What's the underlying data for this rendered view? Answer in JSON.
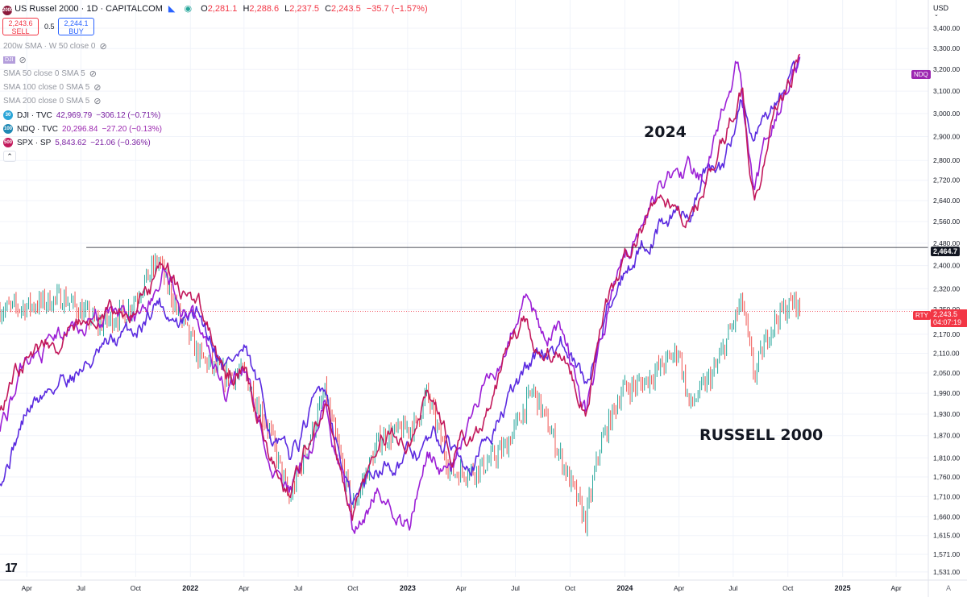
{
  "header": {
    "symbol_title": "US Russel 2000 · 1D · CAPITALCOM",
    "ohlc": {
      "o_label": "O",
      "o": "2,281.1",
      "h_label": "H",
      "h": "2,288.6",
      "l_label": "L",
      "l": "2,237.5",
      "c_label": "C",
      "c": "2,243.5",
      "change": "−35.7 (−1.57%)"
    },
    "sell_price": "2,243.6",
    "sell_label": "SELL",
    "spread": "0.5",
    "buy_price": "2,244.1",
    "buy_label": "BUY",
    "currency": "USD"
  },
  "indicators": [
    {
      "label": "200w SMA · W 50 close 0"
    },
    {
      "label": "SMA 50 close 0 SMA 5"
    },
    {
      "label": "SMA 100 close 0 SMA 5"
    },
    {
      "label": "SMA 200 close 0 SMA 5"
    }
  ],
  "stacked_badge_text": "DJI",
  "compare_symbols": [
    {
      "badge": "30",
      "name": "DJI · TVC",
      "value": "42,969.79",
      "change": "−306.12 (−0.71%)",
      "color": "#7b1fa2",
      "badge_color": "#2ca6d8"
    },
    {
      "badge": "100",
      "name": "NDQ · TVC",
      "value": "20,296.84",
      "change": "−27.20 (−0.13%)",
      "color": "#9c27b0",
      "badge_color": "#1e88b4"
    },
    {
      "badge": "500",
      "name": "SPX · SP",
      "value": "5,843.62",
      "change": "−21.06 (−0.36%)",
      "color": "#7b1fa2",
      "badge_color": "#c2185b"
    }
  ],
  "annotations": {
    "year_label": "2024",
    "index_label": "RUSSELL 2000"
  },
  "axis_tags": {
    "ndq": "NDQ",
    "horizontal_level": "2,464.7",
    "rty": "RTY",
    "last_price": "2,243.5",
    "countdown": "04:07:19"
  },
  "colors": {
    "djI_line": "#5b2be0",
    "ndq_line": "#9c1fd6",
    "spx_line": "#c2185b",
    "up_candle": "#26a69a",
    "down_candle": "#ef5350",
    "price_line": "#f23645",
    "ndq_tag": "#9c27b0",
    "rty_tag": "#f23645"
  },
  "chart_data": {
    "type": "line",
    "y_scale": "log",
    "ylim": [
      1520,
      3420
    ],
    "y_ticks": [
      "3,400.00",
      "3,300.00",
      "3,200.00",
      "3,100.00",
      "3,000.00",
      "2,900.00",
      "2,800.00",
      "2,720.00",
      "2,640.00",
      "2,560.00",
      "2,480.00",
      "2,400.00",
      "2,320.00",
      "2,250.00",
      "2,170.00",
      "2,110.00",
      "2,050.00",
      "1,990.00",
      "1,930.00",
      "1,870.00",
      "1,810.00",
      "1,760.00",
      "1,710.00",
      "1,660.00",
      "1,615.00",
      "1,571.00",
      "1,531.00"
    ],
    "x_ticks": [
      "Apr",
      "Jul",
      "Oct",
      "2022",
      "Apr",
      "Jul",
      "Oct",
      "2023",
      "Apr",
      "Jul",
      "Oct",
      "2024",
      "Apr",
      "Jul",
      "Oct",
      "2025",
      "Apr"
    ],
    "xlim": [
      "2021-02-15",
      "2025-05-25"
    ],
    "horizontal_line": 2464.7,
    "last_price": 2243.5,
    "series": [
      {
        "name": "RTY",
        "style": "candles",
        "x": [
          "2021-02-15",
          "2021-04-01",
          "2021-06-01",
          "2021-08-01",
          "2021-09-15",
          "2021-11-08",
          "2021-12-15",
          "2022-01-15",
          "2022-03-01",
          "2022-04-01",
          "2022-05-15",
          "2022-06-16",
          "2022-08-15",
          "2022-09-30",
          "2022-11-15",
          "2023-01-15",
          "2023-02-02",
          "2023-03-15",
          "2023-05-01",
          "2023-06-15",
          "2023-07-31",
          "2023-09-01",
          "2023-10-27",
          "2023-11-20",
          "2023-12-27",
          "2024-02-01",
          "2024-03-31",
          "2024-04-19",
          "2024-06-01",
          "2024-07-16",
          "2024-08-05",
          "2024-09-01",
          "2024-09-20",
          "2024-10-14",
          "2024-10-21"
        ],
        "values": [
          2250,
          2260,
          2290,
          2200,
          2240,
          2420,
          2220,
          2100,
          2040,
          2050,
          1880,
          1700,
          1990,
          1680,
          1860,
          1900,
          1990,
          1770,
          1780,
          1840,
          2000,
          1870,
          1650,
          1840,
          2000,
          2020,
          2120,
          1950,
          2060,
          2280,
          2040,
          2190,
          2240,
          2280,
          2243.5
        ]
      },
      {
        "name": "DJI",
        "x": [
          "2021-02-15",
          "2021-04-01",
          "2021-06-01",
          "2021-08-01",
          "2021-10-01",
          "2021-11-08",
          "2021-12-15",
          "2022-01-15",
          "2022-03-01",
          "2022-04-01",
          "2022-05-20",
          "2022-06-16",
          "2022-08-15",
          "2022-09-30",
          "2022-11-15",
          "2023-01-15",
          "2023-02-15",
          "2023-03-15",
          "2023-05-01",
          "2023-07-01",
          "2023-08-01",
          "2023-09-15",
          "2023-10-27",
          "2023-12-01",
          "2024-01-01",
          "2024-03-01",
          "2024-04-19",
          "2024-05-15",
          "2024-06-15",
          "2024-07-15",
          "2024-08-05",
          "2024-09-01",
          "2024-10-01",
          "2024-10-21"
        ],
        "values": [
          1760,
          1940,
          2040,
          2100,
          2180,
          2290,
          2200,
          2230,
          2090,
          2110,
          1870,
          1800,
          2020,
          1680,
          1800,
          1820,
          1860,
          1830,
          1830,
          2000,
          2090,
          2150,
          2000,
          2260,
          2390,
          2560,
          2600,
          2750,
          2740,
          3080,
          2900,
          2950,
          3120,
          3200
        ]
      },
      {
        "name": "NDQ",
        "x": [
          "2021-02-15",
          "2021-04-01",
          "2021-06-01",
          "2021-08-01",
          "2021-10-01",
          "2021-11-20",
          "2021-12-15",
          "2022-01-15",
          "2022-03-01",
          "2022-04-01",
          "2022-05-20",
          "2022-06-16",
          "2022-08-15",
          "2022-09-30",
          "2022-11-15",
          "2023-01-06",
          "2023-02-02",
          "2023-03-15",
          "2023-05-01",
          "2023-07-15",
          "2023-08-15",
          "2023-09-15",
          "2023-10-27",
          "2023-12-01",
          "2024-01-01",
          "2024-03-01",
          "2024-04-19",
          "2024-05-15",
          "2024-07-10",
          "2024-08-05",
          "2024-09-01",
          "2024-10-01",
          "2024-10-21"
        ],
        "values": [
          1900,
          2080,
          2170,
          2240,
          2200,
          2390,
          2280,
          2200,
          1990,
          2060,
          1770,
          1710,
          1960,
          1640,
          1740,
          1630,
          1830,
          1770,
          1950,
          2290,
          2170,
          2180,
          1950,
          2210,
          2420,
          2720,
          2780,
          2720,
          3270,
          2700,
          2900,
          3100,
          3250
        ]
      },
      {
        "name": "SPX",
        "x": [
          "2021-02-15",
          "2021-04-01",
          "2021-06-01",
          "2021-08-01",
          "2021-10-01",
          "2021-11-20",
          "2021-12-15",
          "2022-01-15",
          "2022-03-01",
          "2022-04-01",
          "2022-05-20",
          "2022-06-16",
          "2022-08-15",
          "2022-09-30",
          "2022-11-15",
          "2023-01-06",
          "2023-02-02",
          "2023-03-15",
          "2023-05-01",
          "2023-07-15",
          "2023-08-15",
          "2023-09-15",
          "2023-10-27",
          "2023-12-01",
          "2024-01-01",
          "2024-03-01",
          "2024-04-19",
          "2024-05-15",
          "2024-07-16",
          "2024-08-05",
          "2024-09-01",
          "2024-10-01",
          "2024-10-21"
        ],
        "values": [
          1960,
          2110,
          2160,
          2230,
          2230,
          2420,
          2290,
          2240,
          2040,
          2080,
          1810,
          1720,
          1980,
          1640,
          1880,
          1860,
          1970,
          1830,
          1900,
          2220,
          2120,
          2140,
          1960,
          2240,
          2420,
          2680,
          2560,
          2700,
          3130,
          2650,
          2900,
          3110,
          3230
        ]
      }
    ]
  }
}
